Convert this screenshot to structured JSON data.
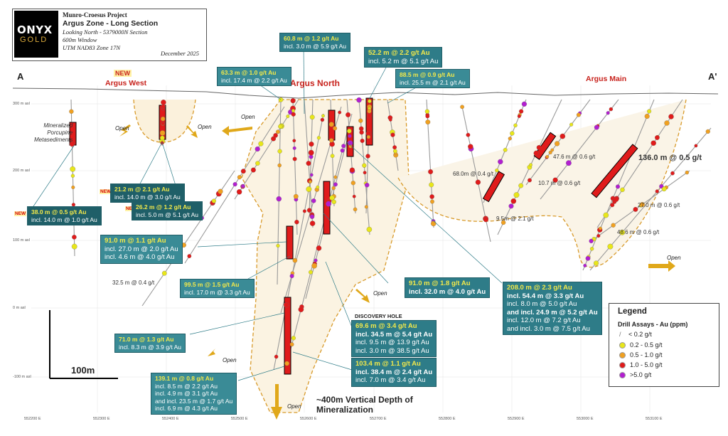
{
  "title_block": {
    "logo_main": "ONYX",
    "logo_sub": "GOLD",
    "project": "Munro-Croesus Project",
    "zone": "Argus Zone - Long Section",
    "line1": "Looking North - 5379000N Section",
    "line2": "600m Window",
    "line3": "UTM NAD83 Zone 17N",
    "date": "December 2025"
  },
  "section_labels": {
    "a_left": "A",
    "a_right": "A'"
  },
  "zones": {
    "new_label": "NEW",
    "argus_west": "Argus West",
    "argus_north": "Argus North",
    "argus_main": "Argus Main"
  },
  "rock_label": "Mineralized\nPorcupine\nMetasediments",
  "open_label": "Open",
  "discovery_hole": "DISCOVERY HOLE",
  "depth_label": "~400m Vertical Depth of Mineralization",
  "scale_bar": "100m",
  "intercepts": [
    {
      "id": "i1",
      "main": "60.8 m @ 1.2 g/t Au",
      "lines": [
        "incl. 3.0 m @ 5.9 g/t Au"
      ]
    },
    {
      "id": "i2",
      "main": "63.3 m @ 1.0 g/t Au",
      "lines": [
        "incl. 17.4 m @ 2.2 g/t Au"
      ]
    },
    {
      "id": "i3",
      "main": "52.2 m @ 2.2 g/t Au",
      "lines": [
        "incl. 5.2 m @ 5.1 g/t Au"
      ]
    },
    {
      "id": "i4",
      "main": "88.5 m @ 0.9 g/t Au",
      "lines": [
        "incl. 25.5 m @ 2.1 g/t Au"
      ]
    },
    {
      "id": "i5",
      "main": "21.2 m @ 2.1 g/t Au",
      "lines": [
        "incl. 14.0 m @ 3.0 g/t Au"
      ]
    },
    {
      "id": "i6",
      "main": "26.2 m @ 1.2 g/t Au",
      "lines": [
        "incl. 5.0 m @ 5.1 g/t Au"
      ]
    },
    {
      "id": "i7",
      "main": "38.0 m @ 0.5 g/t Au",
      "lines": [
        "incl. 14.0 m @ 1.0 g/t Au"
      ]
    },
    {
      "id": "i8",
      "main": "91.0 m @ 1.1 g/t Au",
      "lines": [
        "incl. 27.0 m @ 2.0 g/t Au",
        "incl. 4.6 m @ 4.0 g/t Au"
      ]
    },
    {
      "id": "i9",
      "main": "99.5 m @ 1.5 g/t Au",
      "lines": [
        "incl. 17.0 m @ 3.3 g/t Au"
      ]
    },
    {
      "id": "i10",
      "main": "91.0 m @ 1.8 g/t Au",
      "lines": [
        "incl. 32.0 m @ 4.0 g/t Au"
      ]
    },
    {
      "id": "i11",
      "main": "208.0 m @ 2.3 g/t Au",
      "lines": [
        "incl. 54.4 m @ 3.3 g/t Au",
        "incl. 8.0 m @ 5.0 g/t Au",
        "and incl. 24.9 m @ 5.2 g/t Au",
        "incl. 12.0 m @ 7.2 g/t Au",
        "and incl. 3.0 m @ 7.5 g/t Au"
      ]
    },
    {
      "id": "i12",
      "main": "69.6 m @ 3.4 g/t Au",
      "lines": [
        "incl. 34.5 m @ 5.4 g/t Au",
        "incl. 9.5 m @ 13.9 g/t Au",
        "incl. 3.0 m @ 38.5 g/t Au"
      ]
    },
    {
      "id": "i13",
      "main": "71.0 m @ 1.3 g/t Au",
      "lines": [
        "incl. 8.3 m @ 3.9 g/t Au"
      ]
    },
    {
      "id": "i14",
      "main": "103.4 m @ 1.1 g/t Au",
      "lines": [
        "incl. 38.4 m @ 2.4 g/t Au",
        "incl. 7.0 m @ 3.4 g/t Au"
      ]
    },
    {
      "id": "i15",
      "main": "139.1 m @ 0.8 g/t Au",
      "lines": [
        "incl. 8.5 m @ 2.2 g/t Au",
        "incl. 4.9 m @ 3.1 g/t Au",
        "and incl. 23.5 m @ 1.7 g/t Au",
        "incl. 6.9 m @ 4.3 g/t Au"
      ]
    }
  ],
  "plain_labels": {
    "l1": "32.5 m @ 0.4 g/t",
    "l2": "68.0m @ 0.4 g/t",
    "l3": "47.6 m @ 0.6 g/t",
    "l4": "10.7 m @ 0.6 g/t",
    "l5": "9.5m @ 2.1 g/t",
    "l6": "136.0 m @ 0.5 g/t",
    "l7": "27.0 m @ 0.6 g/t",
    "l8": "48.6 m @ 0.6 g/t"
  },
  "legend": {
    "title": "Legend",
    "subtitle": "Drill Assays - Au (ppm)",
    "items": [
      {
        "label": "< 0.2 g/t",
        "color": "#9a9a9a"
      },
      {
        "label": "0.2 - 0.5 g/t",
        "color": "#e8e61a"
      },
      {
        "label": "0.5 - 1.0 g/t",
        "color": "#f0a020"
      },
      {
        "label": "1.0 - 5.0 g/t",
        "color": "#e01b1b"
      },
      {
        "label": ">5.0 g/t",
        "color": "#b21fd0"
      }
    ]
  },
  "elevations": [
    "300 m asl",
    "200 m asl",
    "100 m asl",
    "0 m asl",
    "-100 m asl"
  ],
  "eastings": [
    "552200 E",
    "552300 E",
    "552400 E",
    "552500 E",
    "552600 E",
    "552700 E",
    "552800 E",
    "552900 E",
    "553000 E",
    "553100 E"
  ]
}
